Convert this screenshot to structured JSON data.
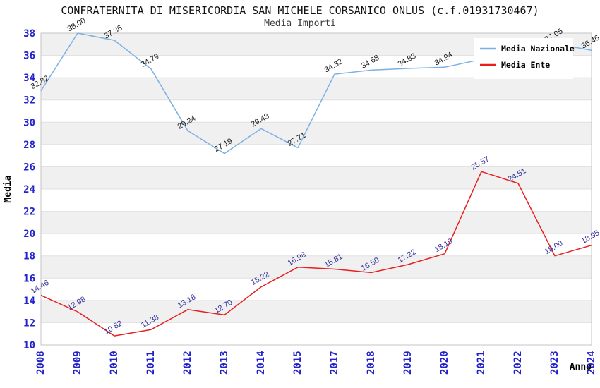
{
  "chart_data": {
    "type": "line",
    "title": "CONFRATERNITA DI MISERICORDIA SAN MICHELE CORSANICO ONLUS (c.f.01931730467)",
    "subtitle": "Media Importi",
    "xlabel": "Anno",
    "ylabel": "Media",
    "ylim": [
      10,
      38
    ],
    "ytick_step": 2,
    "yticks": [
      10,
      12,
      14,
      16,
      18,
      20,
      22,
      24,
      26,
      28,
      30,
      32,
      34,
      36,
      38
    ],
    "categories": [
      "2008",
      "2009",
      "2010",
      "2011",
      "2012",
      "2013",
      "2014",
      "2015",
      "2017",
      "2018",
      "2019",
      "2020",
      "2021",
      "2022",
      "2023",
      "2024"
    ],
    "series": [
      {
        "name": "Media Nazionale",
        "color": "#7cb0e4",
        "label_color": "#1a1a1a",
        "values": [
          32.82,
          38.0,
          37.36,
          34.79,
          29.24,
          27.19,
          29.43,
          27.71,
          34.32,
          34.68,
          34.83,
          34.94,
          null,
          null,
          37.05,
          36.46
        ]
      },
      {
        "name": "Media Ente",
        "color": "#ea1e1e",
        "label_color": "#333399",
        "values": [
          14.46,
          12.98,
          10.82,
          11.38,
          13.18,
          12.7,
          15.22,
          16.98,
          16.81,
          16.5,
          17.22,
          18.19,
          25.57,
          24.51,
          18.0,
          18.95
        ]
      }
    ],
    "legend_position": "top-right",
    "grid": "alternating-horizontal-bands",
    "colors": {
      "tick_labels": "#2323cb",
      "band_fill": "#f0f0f0",
      "gridline": "#e0e0e0",
      "plot_border": "#c4c4c4",
      "axis_titles": "#000000",
      "legend_background": "#ffffff"
    }
  }
}
